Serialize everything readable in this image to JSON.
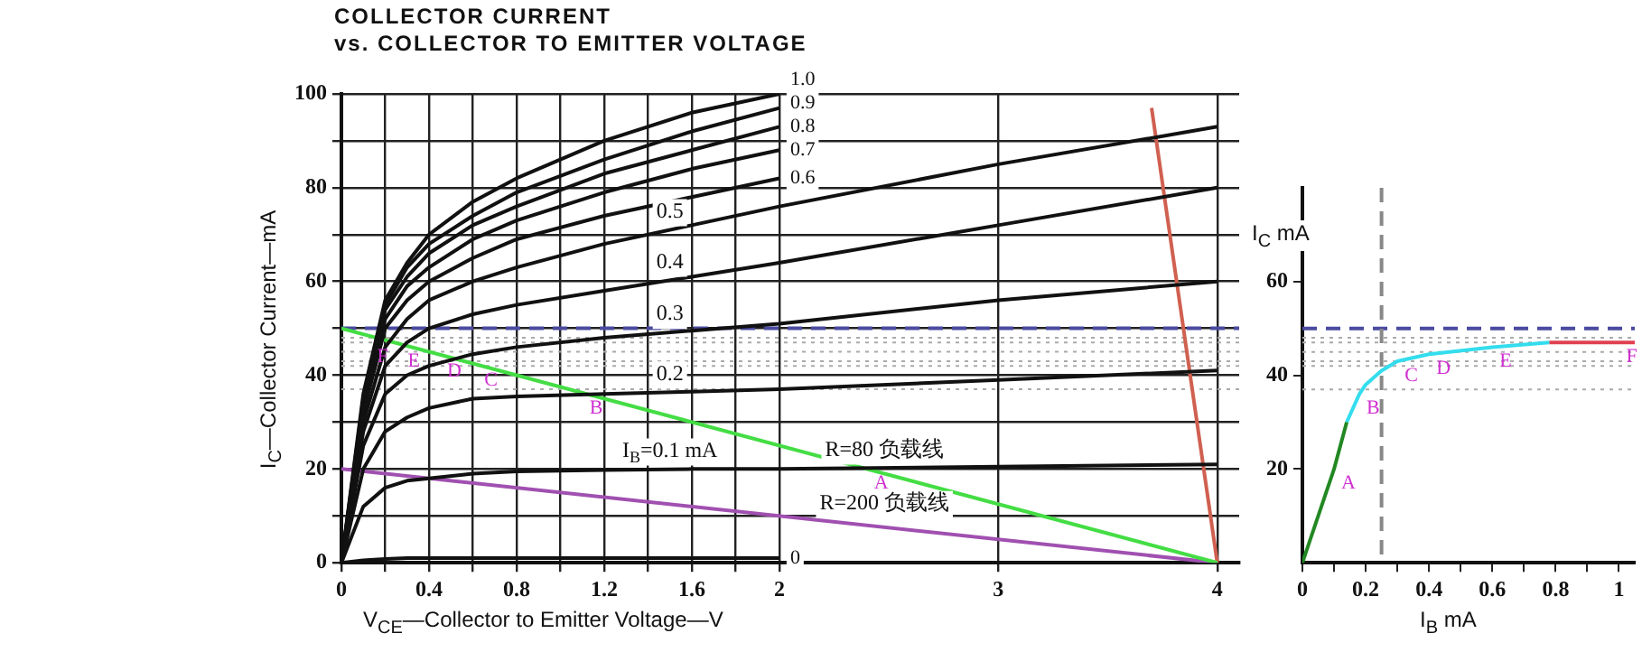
{
  "chart_data": [
    {
      "type": "line",
      "title": "COLLECTOR CURRENT",
      "subtitle": "vs. COLLECTOR TO EMITTER VOLTAGE",
      "xlabel": "V$_{CE}$—Collector to Emitter Voltage—V",
      "ylabel": "I$_{C}$—Collector Current—mA",
      "x": [
        0,
        0.1,
        0.2,
        0.3,
        0.4,
        0.6,
        0.8,
        1.2,
        1.6,
        2.0,
        3.0,
        4.0
      ],
      "series": [
        {
          "name": "0",
          "color": "#111111",
          "values": [
            0,
            0.5,
            0.8,
            1,
            1,
            1,
            1,
            1,
            1,
            1,
            null,
            null
          ]
        },
        {
          "name": "I$_{B}$=0.1 mA",
          "color": "#111111",
          "values": [
            0,
            12,
            16,
            17.5,
            18,
            19,
            19.5,
            19.8,
            20,
            20,
            20.5,
            21
          ]
        },
        {
          "name": "0.2",
          "color": "#111111",
          "values": [
            0,
            20,
            28,
            31,
            33,
            35,
            35.5,
            36,
            36.5,
            37,
            39,
            41
          ]
        },
        {
          "name": "0.3",
          "color": "#111111",
          "values": [
            0,
            25,
            36,
            40,
            42,
            44.5,
            46,
            48,
            49.5,
            51,
            56,
            60
          ]
        },
        {
          "name": "0.4",
          "color": "#111111",
          "values": [
            0,
            28,
            42,
            47,
            50,
            53,
            55,
            58,
            61,
            64,
            72,
            80
          ]
        },
        {
          "name": "0.5",
          "color": "#111111",
          "values": [
            0,
            30,
            46,
            52,
            56,
            60,
            63,
            68,
            72,
            76,
            85,
            93
          ]
        },
        {
          "name": "0.6",
          "color": "#111111",
          "values": [
            0,
            32,
            50,
            56,
            60,
            65,
            69,
            74,
            78,
            82,
            null,
            null
          ]
        },
        {
          "name": "0.7",
          "color": "#111111",
          "values": [
            0,
            33,
            52,
            59,
            63,
            69,
            73,
            79,
            84,
            88,
            null,
            null
          ]
        },
        {
          "name": "0.8",
          "color": "#111111",
          "values": [
            0,
            34,
            54,
            61,
            66,
            72,
            76,
            83,
            88,
            93,
            null,
            null
          ]
        },
        {
          "name": "0.9",
          "color": "#111111",
          "values": [
            0,
            35,
            55,
            63,
            68,
            74,
            79,
            86,
            92,
            97,
            null,
            null
          ]
        },
        {
          "name": "1.0",
          "color": "#111111",
          "values": [
            0,
            36,
            56,
            64,
            70,
            77,
            82,
            90,
            96,
            100,
            null,
            null
          ]
        },
        {
          "name": "R=80 负载线",
          "color": "#44dd44",
          "x": [
            0,
            4
          ],
          "values": [
            50,
            0
          ]
        },
        {
          "name": "R=200 负载线",
          "color": "#a050b0",
          "x": [
            0,
            4
          ],
          "values": [
            20,
            0
          ]
        },
        {
          "color": "#d06050",
          "x": [
            3.7,
            4
          ],
          "values": [
            97,
            0
          ]
        }
      ],
      "xlim": [
        0,
        4.1
      ],
      "ylim": [
        0,
        100
      ],
      "xticks": [
        0,
        {
          "value": 0.2,
          "label": null
        },
        0.4,
        {
          "value": 0.6,
          "label": null
        },
        0.8,
        {
          "value": 1.0,
          "label": null
        },
        1.2,
        {
          "value": 1.4,
          "label": null
        },
        1.6,
        {
          "value": 1.8,
          "label": null
        },
        2.0,
        3.0,
        4.0
      ],
      "yticks": [
        0,
        {
          "value": 10,
          "label": null
        },
        20,
        {
          "value": 30,
          "label": null
        },
        40,
        {
          "value": 50,
          "label": null
        },
        60,
        {
          "value": 70,
          "label": null
        },
        80,
        {
          "value": 90,
          "label": null
        },
        100
      ],
      "grid": true,
      "ref_lines": [
        {
          "axis": "y",
          "value": 50,
          "color": "#4a4aa0",
          "line_style": "dashed"
        },
        {
          "axis": "y",
          "value": 48,
          "color": "#aaaaaa",
          "line_style": "dotted"
        },
        {
          "axis": "y",
          "value": 47,
          "color": "#aaaaaa",
          "line_style": "dotted"
        },
        {
          "axis": "y",
          "value": 45,
          "color": "#aaaaaa",
          "line_style": "dotted"
        },
        {
          "axis": "y",
          "value": 43,
          "color": "#aaaaaa",
          "line_style": "dotted"
        },
        {
          "axis": "y",
          "value": 42,
          "color": "#aaaaaa",
          "line_style": "dotted"
        },
        {
          "axis": "y",
          "value": 37,
          "color": "#aaaaaa",
          "line_style": "dotted"
        }
      ],
      "annotations": [
        {
          "text": "F",
          "x": 0.13,
          "y": 47
        },
        {
          "text": "E",
          "x": 0.27,
          "y": 46
        },
        {
          "text": "D",
          "x": 0.45,
          "y": 44
        },
        {
          "text": "C",
          "x": 0.62,
          "y": 42
        },
        {
          "text": "B",
          "x": 1.1,
          "y": 36
        },
        {
          "text": "A",
          "x": 2.4,
          "y": 20
        }
      ]
    },
    {
      "type": "line",
      "xlabel": "I$_{B}$ mA",
      "ylabel": "I$_{C}$ mA",
      "series": [
        {
          "color": "#228822",
          "x": [
            0,
            0.1,
            0.14
          ],
          "values": [
            0,
            20,
            30
          ]
        },
        {
          "color": "#33ddee",
          "x": [
            0.14,
            0.18,
            0.2,
            0.25,
            0.3,
            0.4,
            0.6,
            0.78
          ],
          "values": [
            30,
            36,
            38,
            41,
            43,
            44.5,
            46,
            47
          ]
        },
        {
          "color": "#e04050",
          "x": [
            0.78,
            1.05
          ],
          "values": [
            47,
            47
          ]
        }
      ],
      "xlim": [
        0,
        1.05
      ],
      "ylim": [
        0,
        80
      ],
      "xticks": [
        0,
        {
          "value": 0.1,
          "label": null
        },
        0.2,
        {
          "value": 0.3,
          "label": null
        },
        0.4,
        {
          "value": 0.5,
          "label": null
        },
        0.6,
        {
          "value": 0.7,
          "label": null
        },
        0.8,
        {
          "value": 0.9,
          "label": null
        },
        1.0
      ],
      "yticks": [
        20,
        40,
        60
      ],
      "grid": false,
      "ref_lines": [
        {
          "axis": "y",
          "value": 50,
          "color": "#4a4aa0",
          "line_style": "dashed"
        },
        {
          "axis": "y",
          "value": 48,
          "color": "#aaaaaa",
          "line_style": "dotted"
        },
        {
          "axis": "y",
          "value": 47,
          "color": "#aaaaaa",
          "line_style": "dotted"
        },
        {
          "axis": "y",
          "value": 45,
          "color": "#aaaaaa",
          "line_style": "dotted"
        },
        {
          "axis": "y",
          "value": 43,
          "color": "#aaaaaa",
          "line_style": "dotted"
        },
        {
          "axis": "y",
          "value": 42,
          "color": "#aaaaaa",
          "line_style": "dotted"
        },
        {
          "axis": "y",
          "value": 37,
          "color": "#aaaaaa",
          "line_style": "dotted"
        },
        {
          "axis": "x",
          "value": 0.25,
          "color": "#888888",
          "line_style": "dashed"
        }
      ],
      "annotations": [
        {
          "text": "A",
          "x": 0.1,
          "y": 20
        },
        {
          "text": "B",
          "x": 0.18,
          "y": 36
        },
        {
          "text": "C",
          "x": 0.3,
          "y": 43
        },
        {
          "text": "D",
          "x": 0.4,
          "y": 44.5
        },
        {
          "text": "E",
          "x": 0.6,
          "y": 46
        },
        {
          "text": "F",
          "x": 1.0,
          "y": 47
        }
      ]
    }
  ]
}
